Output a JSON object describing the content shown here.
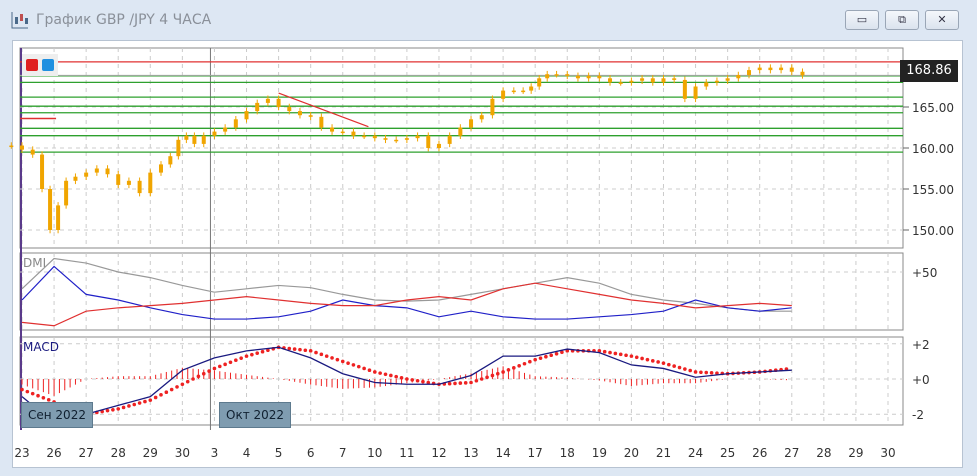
{
  "window": {
    "title": "График GBP /JPY  4 ЧАСА",
    "controls": [
      "minimize",
      "restore",
      "close"
    ]
  },
  "colors": {
    "candle": "#f0a500",
    "support": "#2ea02e",
    "resistance": "#e03030",
    "dmi_adx": "#999999",
    "dmi_plus": "#e03030",
    "dmi_minus": "#2020c8",
    "macd_line": "#1a1a80",
    "macd_signal": "#ee2222",
    "macd_hist": "#ee2222"
  },
  "legend_buttons": [
    {
      "color": "#e02020",
      "icon": "red-square"
    },
    {
      "color": "#2090e0",
      "icon": "blue-square"
    }
  ],
  "price": {
    "last": "168.86",
    "ticks": [
      "165.00",
      "160.00",
      "155.00",
      "150.00"
    ],
    "tick_values": [
      165,
      160,
      155,
      150
    ]
  },
  "x_labels": [
    "23",
    "26",
    "27",
    "28",
    "29",
    "30",
    "3",
    "4",
    "5",
    "6",
    "7",
    "10",
    "11",
    "12",
    "13",
    "14",
    "17",
    "18",
    "19",
    "20",
    "21",
    "24",
    "25",
    "26",
    "27",
    "28",
    "29",
    "30"
  ],
  "month_labels": [
    {
      "label": "Сен 2022",
      "day_index": 0
    },
    {
      "label": "Окт 2022",
      "day_index": 6
    }
  ],
  "chart_data": [
    {
      "type": "candlestick",
      "title": "График GBP /JPY  4 ЧАСА",
      "yaxis_ticks": [
        150,
        155,
        160,
        165
      ],
      "last_price": 168.86,
      "closes_by_day": [
        [
          160.3,
          159.8,
          159.2
        ],
        [
          155,
          150,
          153,
          156
        ],
        [
          156.5,
          157,
          157.5
        ],
        [
          156.8,
          155.5,
          156
        ],
        [
          154.5,
          157,
          158
        ],
        [
          159,
          161,
          161.5,
          160.5
        ],
        [
          161.5,
          162,
          162.5
        ],
        [
          163.5,
          164.5,
          165.5
        ],
        [
          166,
          165,
          164.5
        ],
        [
          164,
          163.8,
          162.5
        ],
        [
          162,
          162,
          161.5
        ],
        [
          161.5,
          161.2,
          161
        ],
        [
          161,
          161.2,
          161.5
        ],
        [
          160,
          160.5,
          161.5
        ],
        [
          162.5,
          163.5,
          164
        ],
        [
          166,
          167,
          167
        ],
        [
          167,
          167.5,
          168.5,
          169
        ],
        [
          169,
          168.8,
          168.5
        ],
        [
          168.8,
          168.5,
          168
        ],
        [
          168,
          168.2,
          168.5
        ],
        [
          168,
          168.5,
          168.3
        ],
        [
          166,
          167.5,
          168
        ],
        [
          168.2,
          168.5,
          168.9
        ],
        [
          169.5,
          169.8,
          169.5
        ],
        [
          169.8,
          169.3,
          168.86
        ]
      ],
      "horizontal_levels": {
        "resistance": [
          170.5
        ],
        "support": [
          168.8,
          168.0,
          166.2,
          165.1,
          164.3,
          162.4,
          161.5,
          159.5
        ]
      },
      "short_level": {
        "price": 163.6,
        "from_day": 0,
        "to_day": 1
      },
      "trendline": {
        "from": {
          "day_index": 8,
          "price": 166.7
        },
        "to": {
          "day_index": 10.8,
          "price": 162.6
        }
      }
    },
    {
      "type": "line",
      "title": "DMI",
      "yaxis_ticks": [
        "+50"
      ],
      "tick_values": [
        50
      ],
      "series": [
        {
          "values": [
            35,
            62,
            58,
            50,
            45,
            38,
            32,
            35,
            38,
            36,
            30,
            25,
            24,
            25,
            30,
            35,
            40,
            45,
            40,
            30,
            25,
            22,
            18,
            15,
            15
          ]
        },
        {
          "values": [
            25,
            55,
            30,
            25,
            18,
            12,
            8,
            8,
            10,
            15,
            25,
            20,
            18,
            10,
            15,
            10,
            8,
            8,
            10,
            12,
            15,
            25,
            18,
            15,
            18
          ]
        },
        {
          "values": [
            5,
            2,
            15,
            18,
            20,
            22,
            25,
            28,
            25,
            22,
            20,
            20,
            25,
            28,
            25,
            35,
            40,
            35,
            30,
            25,
            22,
            18,
            20,
            22,
            20
          ]
        }
      ]
    },
    {
      "type": "line",
      "title": "MACD",
      "yaxis_ticks": [
        "+2",
        "+0",
        "-2"
      ],
      "tick_values": [
        2,
        0,
        -2
      ],
      "series": [
        {
          "values": [
            -1,
            -2.5,
            -2,
            -1.5,
            -1,
            0.5,
            1.2,
            1.6,
            1.8,
            1.2,
            0.3,
            -0.2,
            -0.3,
            -0.3,
            0.2,
            1.3,
            1.3,
            1.7,
            1.5,
            0.8,
            0.6,
            0.1,
            0.3,
            0.4,
            0.5
          ]
        },
        {
          "values": [
            -0.6,
            -1.3,
            -2,
            -1.7,
            -1.2,
            -0.3,
            0.6,
            1.3,
            1.8,
            1.6,
            1.0,
            0.4,
            0,
            -0.3,
            -0.2,
            0.4,
            1.1,
            1.6,
            1.6,
            1.3,
            0.9,
            0.4,
            0.3,
            0.4,
            0.6
          ]
        }
      ]
    }
  ]
}
